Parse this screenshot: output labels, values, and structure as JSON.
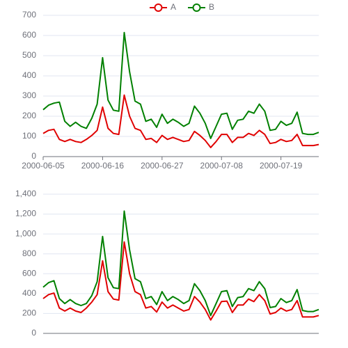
{
  "chart_data": [
    {
      "type": "line",
      "x": [
        "2000-06-05",
        "2000-06-06",
        "2000-06-07",
        "2000-06-08",
        "2000-06-09",
        "2000-06-10",
        "2000-06-11",
        "2000-06-12",
        "2000-06-13",
        "2000-06-14",
        "2000-06-15",
        "2000-06-16",
        "2000-06-17",
        "2000-06-18",
        "2000-06-19",
        "2000-06-20",
        "2000-06-21",
        "2000-06-22",
        "2000-06-23",
        "2000-06-24",
        "2000-06-25",
        "2000-06-26",
        "2000-06-27",
        "2000-06-28",
        "2000-06-29",
        "2000-06-30",
        "2000-07-01",
        "2000-07-02",
        "2000-07-03",
        "2000-07-04",
        "2000-07-05",
        "2000-07-06",
        "2000-07-07",
        "2000-07-08",
        "2000-07-09",
        "2000-07-10",
        "2000-07-11",
        "2000-07-12",
        "2000-07-13",
        "2000-07-14",
        "2000-07-15",
        "2000-07-16",
        "2000-07-17",
        "2000-07-18",
        "2000-07-19",
        "2000-07-20",
        "2000-07-21",
        "2000-07-22",
        "2000-07-23",
        "2000-07-24",
        "2000-07-25",
        "2000-07-26"
      ],
      "series": [
        {
          "name": "A",
          "color": "#e00000",
          "values": [
            115,
            130,
            135,
            85,
            75,
            85,
            75,
            70,
            85,
            105,
            130,
            245,
            140,
            115,
            110,
            305,
            200,
            140,
            130,
            85,
            90,
            70,
            105,
            85,
            95,
            85,
            75,
            80,
            125,
            105,
            80,
            45,
            75,
            110,
            110,
            70,
            95,
            95,
            115,
            105,
            130,
            110,
            65,
            70,
            85,
            75,
            80,
            110,
            55,
            55,
            55,
            60
          ]
        },
        {
          "name": "B",
          "color": "#008000",
          "values": [
            232,
            255,
            265,
            270,
            175,
            150,
            170,
            150,
            140,
            190,
            260,
            490,
            280,
            230,
            225,
            615,
            420,
            275,
            260,
            175,
            185,
            145,
            210,
            165,
            185,
            170,
            150,
            165,
            250,
            215,
            165,
            90,
            150,
            210,
            215,
            135,
            180,
            185,
            225,
            215,
            260,
            225,
            130,
            135,
            175,
            155,
            165,
            220,
            115,
            110,
            110,
            120
          ]
        }
      ],
      "xlim": [
        "2000-06-05",
        "2000-07-26"
      ],
      "xticks": [
        "2000-06-05",
        "2000-06-16",
        "2000-06-27",
        "2000-07-08",
        "2000-07-19"
      ],
      "ylim": [
        0,
        700
      ],
      "yticks": [
        0,
        100,
        200,
        300,
        400,
        500,
        600,
        700
      ],
      "grid": true,
      "legend": "top"
    },
    {
      "type": "line",
      "x": [
        "2000-06-05",
        "2000-06-06",
        "2000-06-07",
        "2000-06-08",
        "2000-06-09",
        "2000-06-10",
        "2000-06-11",
        "2000-06-12",
        "2000-06-13",
        "2000-06-14",
        "2000-06-15",
        "2000-06-16",
        "2000-06-17",
        "2000-06-18",
        "2000-06-19",
        "2000-06-20",
        "2000-06-21",
        "2000-06-22",
        "2000-06-23",
        "2000-06-24",
        "2000-06-25",
        "2000-06-26",
        "2000-06-27",
        "2000-06-28",
        "2000-06-29",
        "2000-06-30",
        "2000-07-01",
        "2000-07-02",
        "2000-07-03",
        "2000-07-04",
        "2000-07-05",
        "2000-07-06",
        "2000-07-07",
        "2000-07-08",
        "2000-07-09",
        "2000-07-10",
        "2000-07-11",
        "2000-07-12",
        "2000-07-13",
        "2000-07-14",
        "2000-07-15",
        "2000-07-16",
        "2000-07-17",
        "2000-07-18",
        "2000-07-19",
        "2000-07-20",
        "2000-07-21",
        "2000-07-22",
        "2000-07-23",
        "2000-07-24",
        "2000-07-25",
        "2000-07-26"
      ],
      "series": [
        {
          "color": "#e00000",
          "values": [
            350,
            390,
            405,
            255,
            225,
            255,
            225,
            210,
            255,
            315,
            390,
            730,
            420,
            345,
            335,
            920,
            600,
            420,
            390,
            255,
            270,
            215,
            315,
            255,
            285,
            255,
            225,
            240,
            370,
            315,
            240,
            135,
            225,
            320,
            325,
            210,
            285,
            285,
            345,
            320,
            390,
            330,
            195,
            210,
            255,
            225,
            240,
            330,
            165,
            165,
            165,
            180
          ]
        },
        {
          "color": "#008000",
          "values": [
            465,
            510,
            530,
            350,
            300,
            340,
            300,
            280,
            300,
            380,
            520,
            975,
            560,
            460,
            450,
            1230,
            840,
            550,
            520,
            350,
            370,
            290,
            420,
            330,
            370,
            340,
            300,
            330,
            500,
            430,
            330,
            180,
            300,
            420,
            430,
            270,
            360,
            370,
            450,
            430,
            520,
            450,
            260,
            270,
            350,
            310,
            330,
            440,
            230,
            220,
            220,
            240
          ]
        }
      ],
      "xlim": [
        "2000-06-05",
        "2000-07-26"
      ],
      "ylim": [
        0,
        1400
      ],
      "yticks": [
        0,
        200,
        400,
        600,
        800,
        {
          "value": 1000,
          "label": "1,000"
        },
        {
          "value": 1200,
          "label": "1,200"
        },
        {
          "value": 1400,
          "label": "1,400"
        }
      ],
      "grid": true
    }
  ]
}
